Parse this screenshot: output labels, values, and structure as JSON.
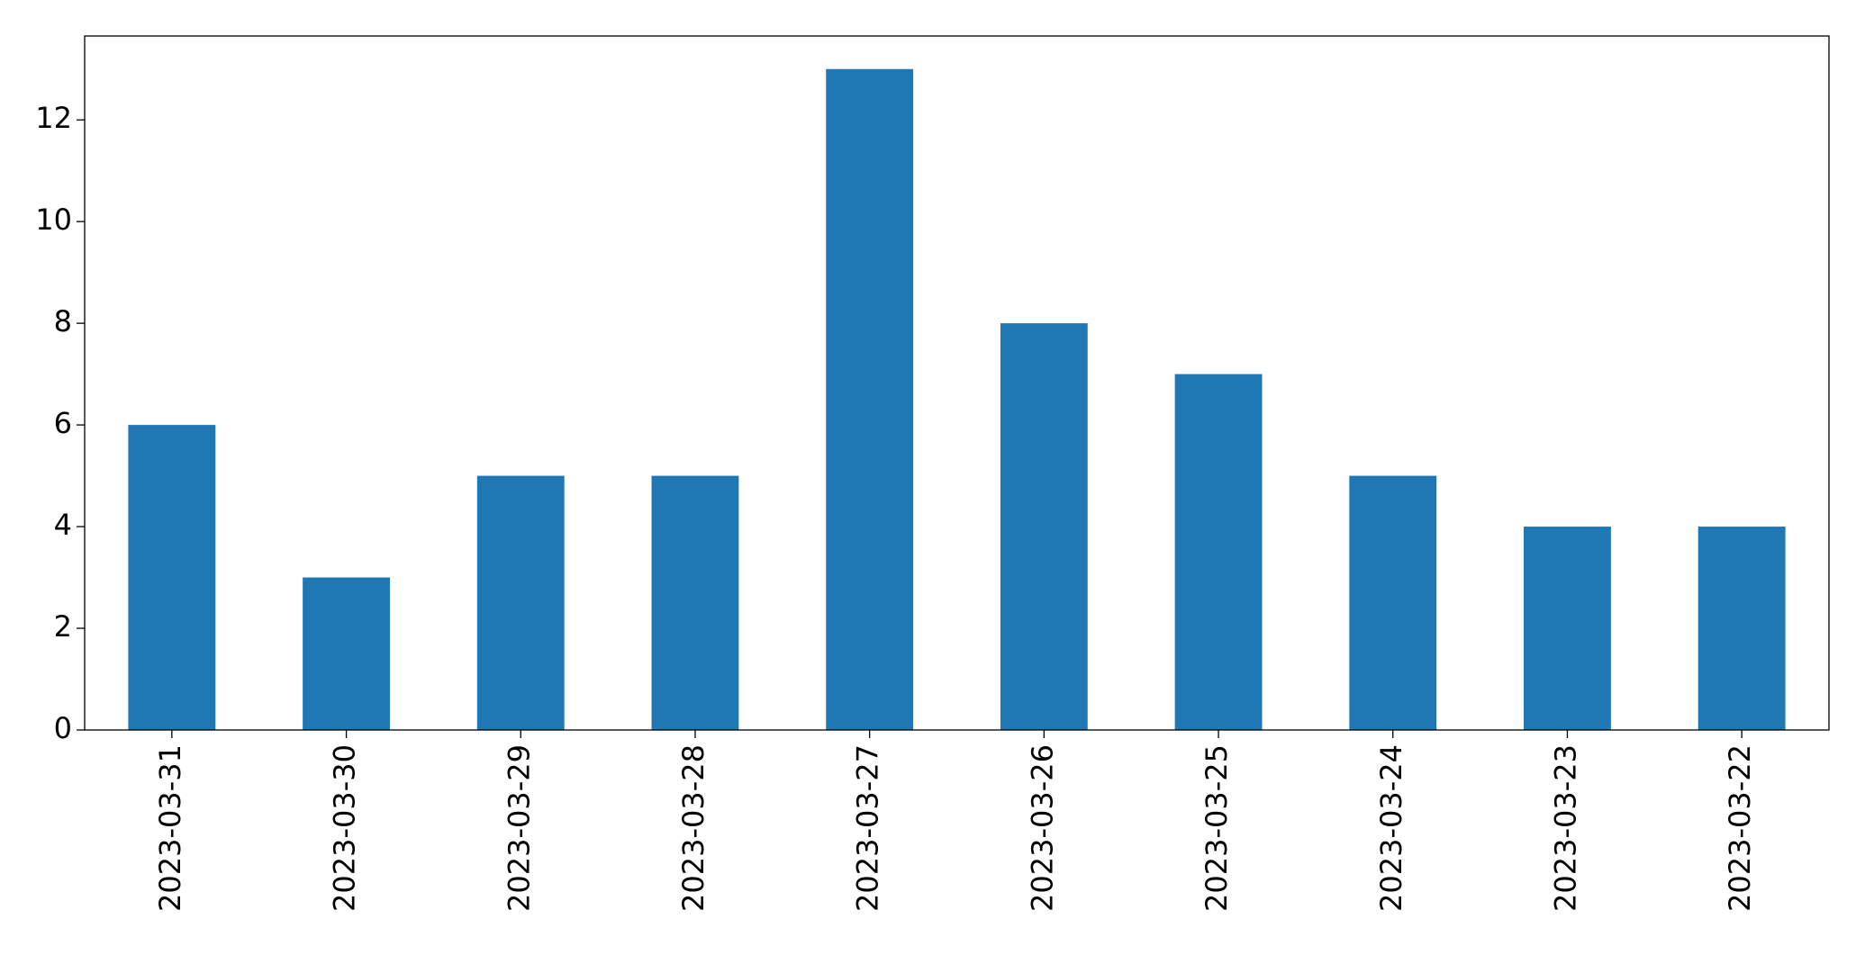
{
  "chart_data": {
    "type": "bar",
    "categories": [
      "2023-03-31",
      "2023-03-30",
      "2023-03-29",
      "2023-03-28",
      "2023-03-27",
      "2023-03-26",
      "2023-03-25",
      "2023-03-24",
      "2023-03-23",
      "2023-03-22"
    ],
    "values": [
      6,
      3,
      5,
      5,
      13,
      8,
      7,
      5,
      4,
      4
    ],
    "color": "#1f77b4",
    "ylim": [
      0,
      13.65
    ],
    "yticks": [
      0,
      2,
      4,
      6,
      8,
      10,
      12
    ],
    "grid": false
  }
}
